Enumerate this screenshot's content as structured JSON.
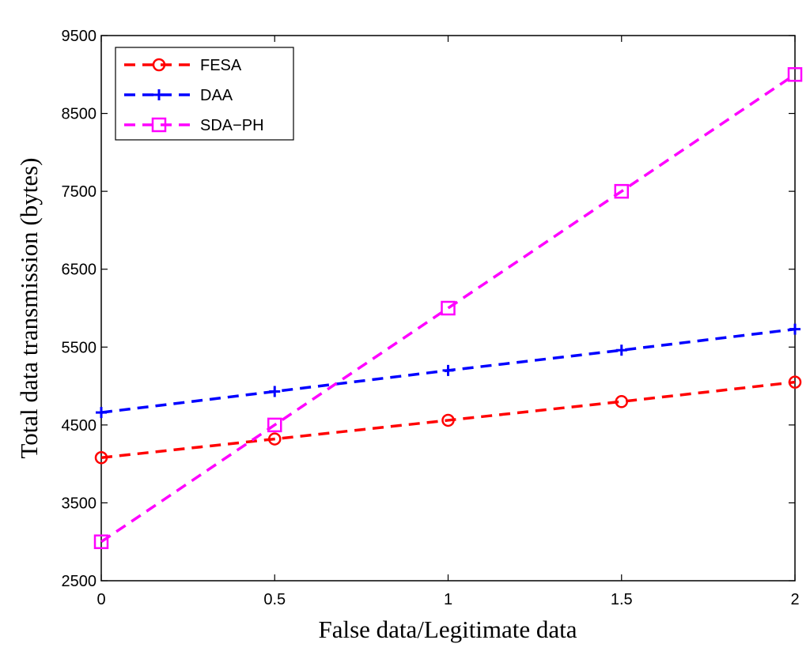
{
  "chart_data": {
    "type": "line",
    "title": "",
    "xlabel": "False data/Legitimate data",
    "ylabel": "Total data transmission (bytes)",
    "x": [
      0,
      0.5,
      1,
      1.5,
      2
    ],
    "xlim": [
      0,
      2
    ],
    "ylim": [
      2500,
      9500
    ],
    "xticks": [
      "0",
      "0.5",
      "1",
      "1.5",
      "2"
    ],
    "xtick_values": [
      0,
      0.5,
      1,
      1.5,
      2
    ],
    "yticks": [
      "2500",
      "3500",
      "4500",
      "5500",
      "6500",
      "7500",
      "8500",
      "9500"
    ],
    "ytick_values": [
      2500,
      3500,
      4500,
      5500,
      6500,
      7500,
      8500,
      9500
    ],
    "grid": false,
    "legend_position": "top-left",
    "series": [
      {
        "name": "FESA",
        "color": "#ff0000",
        "marker": "circle",
        "line_style": "dashed",
        "values": [
          4080,
          4320,
          4560,
          4800,
          5050
        ]
      },
      {
        "name": "DAA",
        "color": "#0000ff",
        "marker": "plus",
        "line_style": "dashed",
        "values": [
          4660,
          4930,
          5200,
          5460,
          5730
        ]
      },
      {
        "name": "SDA−PH",
        "color": "#ff00ff",
        "marker": "square",
        "line_style": "dashed",
        "values": [
          3000,
          4500,
          6000,
          7500,
          9000
        ]
      }
    ]
  }
}
